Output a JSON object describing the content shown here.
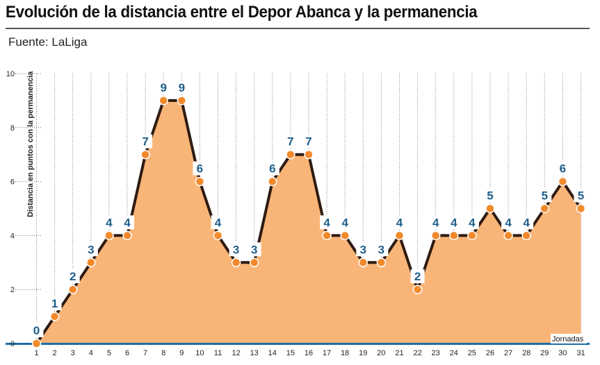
{
  "header": {
    "title": "Evolución de la distancia entre el Depor Abanca y la permanencia",
    "source": "Fuente: LaLiga"
  },
  "colors": {
    "area": "#f9b577",
    "line": "#2e1b12",
    "marker": "#f28a2c",
    "label": "#1f5f8b",
    "axis": "#1a6ea8"
  },
  "chart_data": {
    "type": "area",
    "title": "Evolución de la distancia entre el Depor Abanca y la permanencia",
    "xlabel": "Jornadas",
    "ylabel": "Distancia en puntos con la permanencia",
    "x": [
      1,
      2,
      3,
      4,
      5,
      6,
      7,
      8,
      9,
      10,
      11,
      12,
      13,
      14,
      15,
      16,
      17,
      18,
      19,
      20,
      21,
      22,
      23,
      24,
      25,
      26,
      27,
      28,
      29,
      30,
      31
    ],
    "values": [
      0,
      1,
      2,
      3,
      4,
      4,
      7,
      9,
      9,
      6,
      4,
      3,
      3,
      6,
      7,
      7,
      4,
      4,
      3,
      3,
      4,
      2,
      4,
      4,
      4,
      5,
      4,
      4,
      5,
      6,
      5
    ],
    "yticks": [
      0,
      2,
      4,
      6,
      8,
      10
    ],
    "ylim": [
      0,
      10
    ],
    "grid": "vertical dotted",
    "data_labels": true
  }
}
